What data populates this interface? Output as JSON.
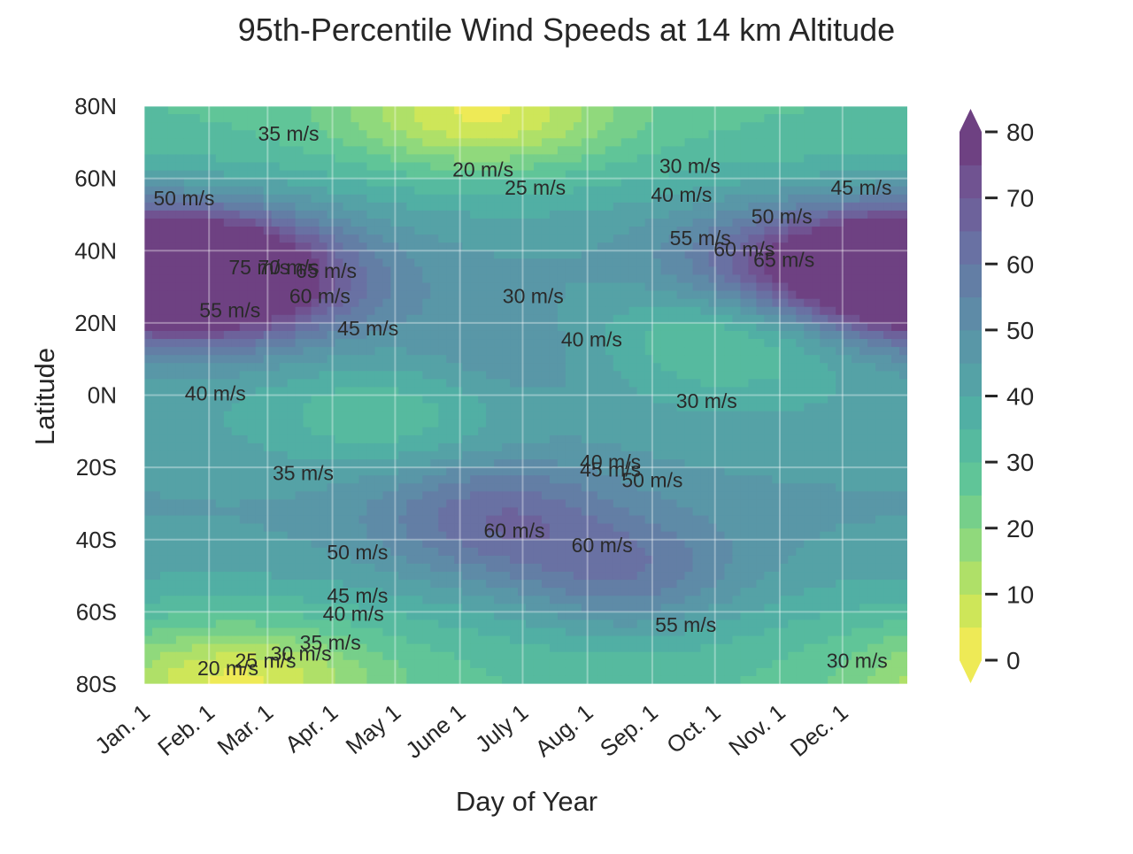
{
  "chart_data": {
    "type": "heatmap",
    "subtype": "filled-contour",
    "title": "95th-Percentile Wind Speeds at 14 km Altitude",
    "xlabel": "Day of Year",
    "ylabel": "Latitude",
    "x_ticks": [
      "Jan. 1",
      "Feb. 1",
      "Mar. 1",
      "Apr. 1",
      "May 1",
      "June 1",
      "July 1",
      "Aug. 1",
      "Sep. 1",
      "Oct. 1",
      "Nov. 1",
      "Dec. 1"
    ],
    "x_tick_days": [
      1,
      32,
      60,
      91,
      121,
      152,
      182,
      213,
      244,
      274,
      305,
      335
    ],
    "xlim": [
      1,
      366
    ],
    "y_ticks": [
      "80N",
      "60N",
      "40N",
      "20N",
      "0N",
      "20S",
      "40S",
      "60S",
      "80S"
    ],
    "y_tick_values": [
      80,
      60,
      40,
      20,
      0,
      -20,
      -40,
      -60,
      -80
    ],
    "ylim": [
      -80,
      80
    ],
    "colorbar": {
      "ticks": [
        "0",
        "10",
        "20",
        "30",
        "40",
        "50",
        "60",
        "70",
        "80"
      ],
      "range": [
        0,
        80
      ],
      "step": 5,
      "colormap": "viridis_r",
      "extend": "both"
    },
    "units": "m/s",
    "grid": true,
    "contour_labels": [
      {
        "text": "35 m/s",
        "day": 70,
        "lat": 72
      },
      {
        "text": "50 m/s",
        "day": 20,
        "lat": 54
      },
      {
        "text": "20 m/s",
        "day": 163,
        "lat": 62
      },
      {
        "text": "25 m/s",
        "day": 188,
        "lat": 57
      },
      {
        "text": "30 m/s",
        "day": 262,
        "lat": 63
      },
      {
        "text": "40 m/s",
        "day": 258,
        "lat": 55
      },
      {
        "text": "45 m/s",
        "day": 344,
        "lat": 57
      },
      {
        "text": "50 m/s",
        "day": 306,
        "lat": 49
      },
      {
        "text": "55 m/s",
        "day": 267,
        "lat": 43
      },
      {
        "text": "60 m/s",
        "day": 288,
        "lat": 40
      },
      {
        "text": "65 m/s",
        "day": 307,
        "lat": 37
      },
      {
        "text": "75 m/s",
        "day": 56,
        "lat": 35
      },
      {
        "text": "70 m/s",
        "day": 70,
        "lat": 35
      },
      {
        "text": "65 m/s",
        "day": 88,
        "lat": 34
      },
      {
        "text": "60 m/s",
        "day": 85,
        "lat": 27
      },
      {
        "text": "55 m/s",
        "day": 42,
        "lat": 23
      },
      {
        "text": "45 m/s",
        "day": 108,
        "lat": 18
      },
      {
        "text": "30 m/s",
        "day": 187,
        "lat": 27
      },
      {
        "text": "40 m/s",
        "day": 215,
        "lat": 15
      },
      {
        "text": "40 m/s",
        "day": 35,
        "lat": 0
      },
      {
        "text": "30 m/s",
        "day": 270,
        "lat": -2
      },
      {
        "text": "40 m/s",
        "day": 224,
        "lat": -19
      },
      {
        "text": "45 m/s",
        "day": 224,
        "lat": -21
      },
      {
        "text": "50 m/s",
        "day": 244,
        "lat": -24
      },
      {
        "text": "35 m/s",
        "day": 77,
        "lat": -22
      },
      {
        "text": "60 m/s",
        "day": 178,
        "lat": -38
      },
      {
        "text": "60 m/s",
        "day": 220,
        "lat": -42
      },
      {
        "text": "50 m/s",
        "day": 103,
        "lat": -44
      },
      {
        "text": "45 m/s",
        "day": 103,
        "lat": -56
      },
      {
        "text": "40 m/s",
        "day": 101,
        "lat": -61
      },
      {
        "text": "35 m/s",
        "day": 90,
        "lat": -69
      },
      {
        "text": "30 m/s",
        "day": 76,
        "lat": -72
      },
      {
        "text": "25 m/s",
        "day": 59,
        "lat": -74
      },
      {
        "text": "20 m/s",
        "day": 41,
        "lat": -76
      },
      {
        "text": "55 m/s",
        "day": 260,
        "lat": -64
      },
      {
        "text": "30 m/s",
        "day": 342,
        "lat": -74
      }
    ],
    "features": [
      {
        "kind": "max",
        "day": 15,
        "lat": 34,
        "value": 80
      },
      {
        "kind": "max",
        "day": 57,
        "lat": 32,
        "value": 74
      },
      {
        "kind": "max",
        "day": 362,
        "lat": 34,
        "value": 80
      },
      {
        "kind": "max",
        "day": 305,
        "lat": 36,
        "value": 68
      },
      {
        "kind": "max",
        "day": 168,
        "lat": -34,
        "value": 65
      },
      {
        "kind": "max",
        "day": 232,
        "lat": -51,
        "value": 64
      },
      {
        "kind": "max",
        "day": 177,
        "lat": 8,
        "value": 53
      },
      {
        "kind": "min",
        "day": 163,
        "lat": 78,
        "value": 15
      },
      {
        "kind": "min",
        "day": 45,
        "lat": -79,
        "value": 15
      },
      {
        "kind": "min",
        "day": 280,
        "lat": 17,
        "value": 24
      },
      {
        "kind": "min",
        "day": 120,
        "lat": -6,
        "value": 30
      }
    ]
  }
}
